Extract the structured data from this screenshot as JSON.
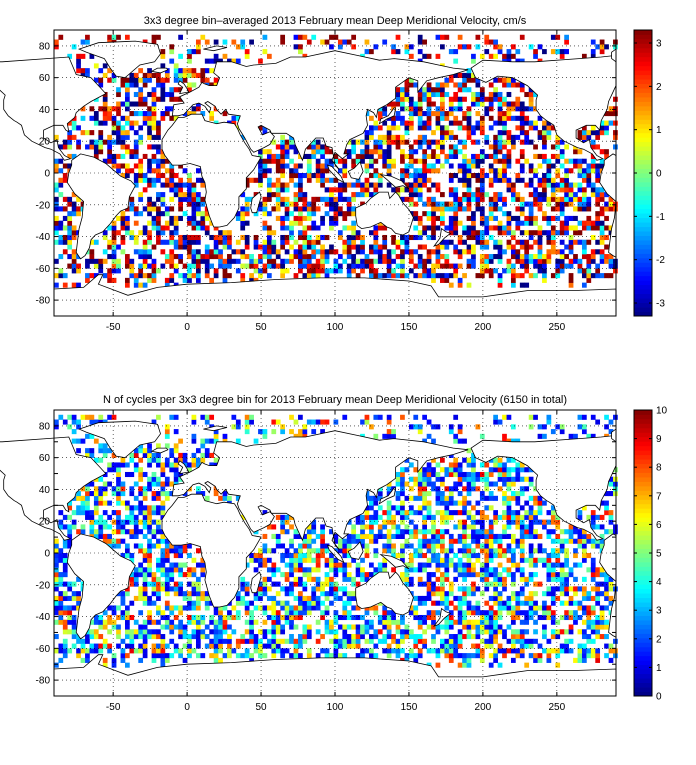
{
  "chart_data": [
    {
      "type": "heatmap",
      "title": "3x3 degree bin–averaged 2013 February mean Deep Meridional Velocity, cm/s",
      "xlim": [
        -90,
        290
      ],
      "ylim": [
        -90,
        90
      ],
      "xticks": [
        -50,
        0,
        50,
        100,
        150,
        200,
        250
      ],
      "yticks": [
        -80,
        -60,
        -40,
        -20,
        0,
        20,
        40,
        60,
        80
      ],
      "grid": "dotted",
      "colorbar": {
        "min": -3.3,
        "max": 3.3,
        "ticks": [
          -3,
          -2,
          -1,
          0,
          1,
          2,
          3
        ],
        "colormap": "jet",
        "placement": "right"
      },
      "bin_size_deg": 3,
      "value_seed": 11
    },
    {
      "type": "heatmap",
      "title": "N of cycles per 3x3 degree bin for 2013 February mean Deep Meridional Velocity (6150 in total)",
      "xlim": [
        -90,
        290
      ],
      "ylim": [
        -90,
        90
      ],
      "xticks": [
        -50,
        0,
        50,
        100,
        150,
        200,
        250
      ],
      "yticks": [
        -80,
        -70,
        -60,
        -50,
        -40,
        -30,
        -20,
        -10,
        0,
        10,
        20,
        30,
        40,
        50,
        60,
        70,
        80
      ],
      "yticklabels": [
        "-80",
        "",
        "-60",
        "",
        "-40",
        "",
        "-20",
        "",
        "0",
        "",
        "20",
        "",
        "40",
        "",
        "60",
        "",
        "80"
      ],
      "grid": "dotted",
      "colorbar": {
        "min": 0,
        "max": 10,
        "ticks": [
          0,
          1,
          2,
          3,
          4,
          5,
          6,
          7,
          8,
          9,
          10
        ],
        "colormap": "jet",
        "placement": "right"
      },
      "bin_size_deg": 3,
      "value_seed": 23
    }
  ]
}
